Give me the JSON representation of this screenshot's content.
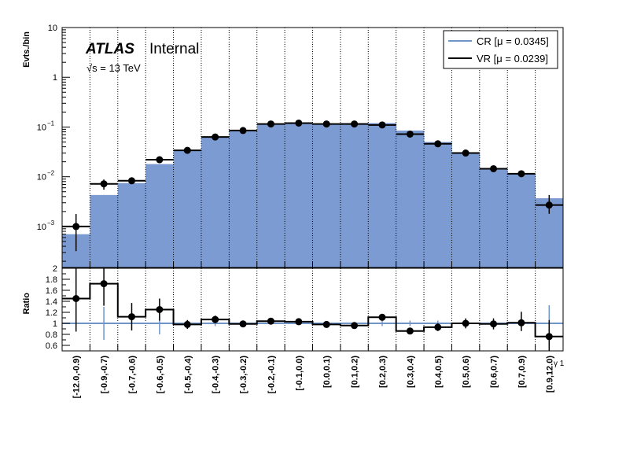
{
  "chart_data": {
    "type": "bar",
    "ylabel_top": "Evts./bin",
    "ylabel_bottom": "Ratio",
    "xlabel": "γ 1",
    "top_yscale": "log",
    "top_ylim": [
      0.00015,
      10
    ],
    "top_ticks": [
      {
        "value": 10,
        "label": "10"
      },
      {
        "value": 1,
        "label": "1"
      },
      {
        "value": 0.1,
        "base": "10",
        "exp": "−1"
      },
      {
        "value": 0.01,
        "base": "10",
        "exp": "−2"
      },
      {
        "value": 0.001,
        "base": "10",
        "exp": "−3"
      }
    ],
    "ratio_ylim": [
      0.5,
      2.0
    ],
    "ratio_ticks": [
      "0.6",
      "0.8",
      "1",
      "1.2",
      "1.4",
      "1.6",
      "1.8",
      "2"
    ],
    "categories": [
      "[-12.0,-0.9)",
      "[-0.9,-0.7)",
      "[-0.7,-0.6)",
      "[-0.6,-0.5)",
      "[-0.5,-0.4)",
      "[-0.4,-0.3)",
      "[-0.3,-0.2)",
      "[-0.2,-0.1)",
      "[-0.1,0.0)",
      "[0.0,0.1)",
      "[0.1,0.2)",
      "[0.2,0.3)",
      "[0.3,0.4)",
      "[0.4,0.5)",
      "[0.5,0.6)",
      "[0.6,0.7)",
      "[0.7,0.9)",
      "[0.9,12.0)"
    ],
    "grid": "vertical dotted lines at bin edges",
    "legend_placement": "top-right",
    "series": [
      {
        "name": "CR [μ = 0.0345]",
        "style": "filled histogram",
        "color": "#7b9bd2",
        "line_color": "#6f94c8",
        "values": [
          0.0007,
          0.0043,
          0.0075,
          0.018,
          0.034,
          0.063,
          0.085,
          0.113,
          0.118,
          0.118,
          0.12,
          0.12,
          0.085,
          0.05,
          0.031,
          0.0145,
          0.0115,
          0.0037
        ]
      },
      {
        "name": "VR [μ = 0.0239]",
        "style": "points with errors + black step line",
        "color": "#000000",
        "values": [
          0.001,
          0.0072,
          0.0083,
          0.022,
          0.034,
          0.063,
          0.085,
          0.115,
          0.12,
          0.115,
          0.115,
          0.11,
          0.072,
          0.046,
          0.03,
          0.0145,
          0.0115,
          0.0027
        ],
        "err_low": [
          0.00068,
          0.0017,
          0.0008,
          0.002,
          0.002,
          0.003,
          0.004,
          0.004,
          0.004,
          0.004,
          0.004,
          0.004,
          0.003,
          0.003,
          0.002,
          0.0012,
          0.0012,
          0.0009
        ],
        "err_high": [
          0.00078,
          0.0016,
          0.0009,
          0.002,
          0.002,
          0.003,
          0.004,
          0.004,
          0.004,
          0.004,
          0.004,
          0.004,
          0.003,
          0.003,
          0.002,
          0.0012,
          0.0012,
          0.0016
        ]
      }
    ],
    "ratio": {
      "values": [
        1.45,
        1.72,
        1.12,
        1.25,
        0.98,
        1.07,
        0.99,
        1.04,
        1.03,
        0.98,
        0.96,
        1.11,
        0.86,
        0.93,
        1.0,
        0.99,
        1.01,
        0.76
      ],
      "err_low": [
        0.6,
        0.4,
        0.25,
        0.2,
        0.08,
        0.07,
        0.05,
        0.05,
        0.05,
        0.05,
        0.05,
        0.05,
        0.05,
        0.07,
        0.09,
        0.1,
        0.15,
        0.3
      ],
      "err_high": [
        0.6,
        0.4,
        0.25,
        0.2,
        0.08,
        0.07,
        0.05,
        0.05,
        0.05,
        0.05,
        0.05,
        0.05,
        0.05,
        0.07,
        0.09,
        0.1,
        0.2,
        0.3
      ],
      "cr_err": [
        0.0,
        0.3,
        0.0,
        0.2,
        0.0,
        0.05,
        0.0,
        0.0,
        0.0,
        0.0,
        0.0,
        0.05,
        0.05,
        0.05,
        0.0,
        0.05,
        0.0,
        0.33
      ]
    }
  },
  "labels": {
    "atlas": "ATLAS",
    "internal": "Internal",
    "energy": "√s = 13 TeV"
  }
}
